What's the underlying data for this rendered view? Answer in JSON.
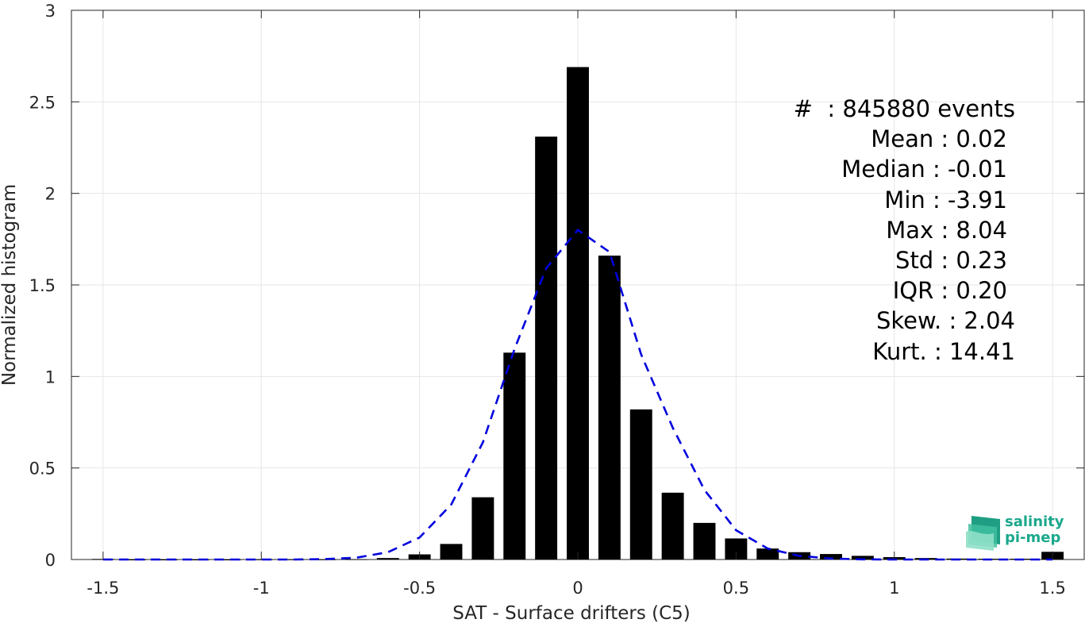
{
  "chart_data": {
    "type": "bar",
    "xlabel": "SAT - Surface drifters (C5)",
    "ylabel": "Normalized histogram",
    "xlim": [
      -1.6,
      1.6
    ],
    "ylim": [
      0,
      3
    ],
    "xticks": [
      -1.5,
      -1,
      -0.5,
      0,
      0.5,
      1,
      1.5
    ],
    "xtick_labels": [
      "-1.5",
      "-1",
      "-0.5",
      "0",
      "0.5",
      "1",
      "1.5"
    ],
    "yticks": [
      0,
      0.5,
      1,
      1.5,
      2,
      2.5,
      3
    ],
    "ytick_labels": [
      "0",
      "0.5",
      "1",
      "1.5",
      "2",
      "2.5",
      "3"
    ],
    "grid": true,
    "bar_width": 0.07,
    "bar_color": "#000000",
    "fit_color": "#0000dd",
    "bars": {
      "x": [
        -1.5,
        -1.4,
        -1.3,
        -1.2,
        -1.1,
        -1.0,
        -0.9,
        -0.8,
        -0.7,
        -0.6,
        -0.5,
        -0.4,
        -0.3,
        -0.2,
        -0.1,
        0.0,
        0.1,
        0.2,
        0.3,
        0.4,
        0.5,
        0.6,
        0.7,
        0.8,
        0.9,
        1.0,
        1.1,
        1.2,
        1.3,
        1.4,
        1.5
      ],
      "values": [
        0.003,
        0.0,
        0.0,
        0.0,
        0.0,
        0.001,
        0.001,
        0.001,
        0.002,
        0.008,
        0.028,
        0.085,
        0.34,
        1.13,
        2.31,
        2.69,
        1.66,
        0.82,
        0.365,
        0.2,
        0.115,
        0.06,
        0.04,
        0.03,
        0.02,
        0.013,
        0.008,
        0.005,
        0.004,
        0.004,
        0.042
      ]
    },
    "fit_line": {
      "style": "dashed",
      "x": [
        -1.5,
        -1.4,
        -1.3,
        -1.2,
        -1.1,
        -1.0,
        -0.9,
        -0.8,
        -0.7,
        -0.6,
        -0.5,
        -0.4,
        -0.3,
        -0.2,
        -0.1,
        0.0,
        0.1,
        0.2,
        0.3,
        0.4,
        0.5,
        0.6,
        0.7,
        0.8,
        0.9,
        1.0,
        1.1,
        1.2,
        1.3,
        1.4,
        1.5
      ],
      "y": [
        0.0,
        0.0,
        0.0,
        0.0,
        0.0,
        0.0,
        0.0,
        0.002,
        0.01,
        0.04,
        0.12,
        0.3,
        0.64,
        1.15,
        1.59,
        1.8,
        1.68,
        1.12,
        0.72,
        0.38,
        0.16,
        0.06,
        0.02,
        0.005,
        0.001,
        0.0,
        0.0,
        0.0,
        0.0,
        0.0,
        0.0
      ]
    }
  },
  "stats": {
    "count": "#  : 845880 events",
    "mean": "Mean : 0.02",
    "median": "Median : -0.01",
    "min": "Min : -3.91",
    "max": "Max : 8.04",
    "std": "Std : 0.23",
    "iqr": "IQR : 0.20",
    "skew": "Skew. : 2.04",
    "kurt": "Kurt. : 14.41"
  },
  "logo": {
    "line1": "salinity",
    "line2": "pi-mep",
    "color": "#1aa88c"
  }
}
